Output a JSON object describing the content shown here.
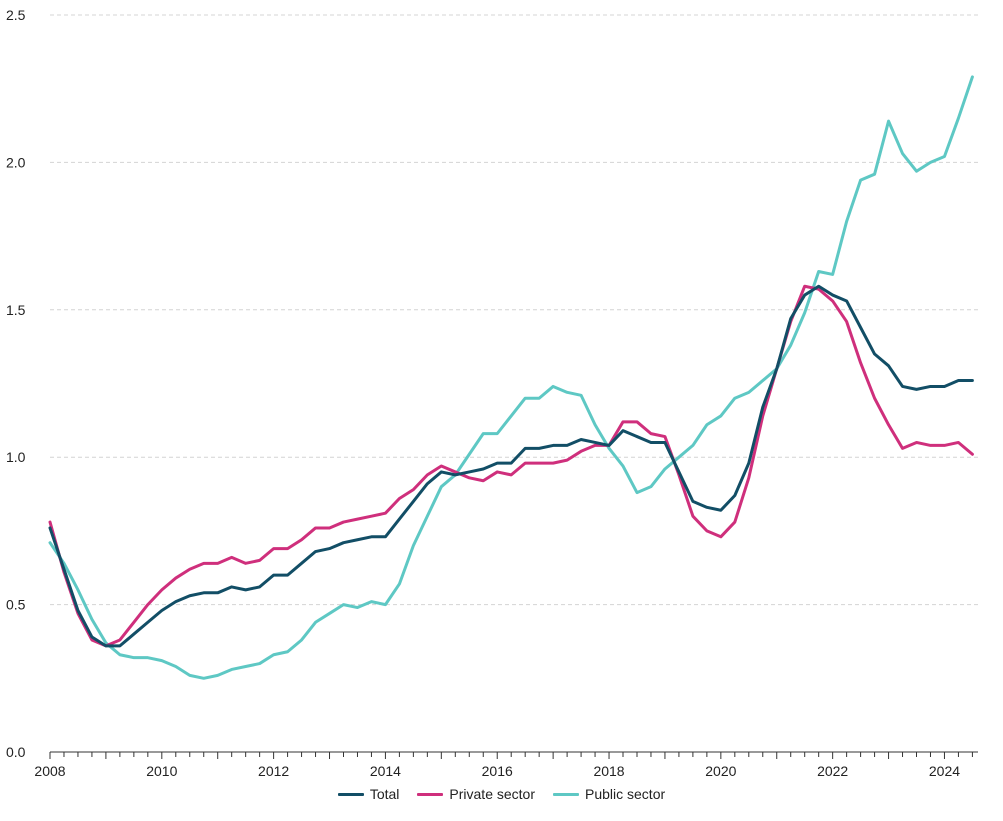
{
  "chart_data": {
    "type": "line",
    "title": "",
    "xlabel": "",
    "ylabel": "",
    "xlim": [
      2008.0,
      2024.6
    ],
    "ylim": [
      0,
      2.5
    ],
    "grid": true,
    "legend_position": "bottom-center",
    "x_ticks": [
      "2008",
      "2010",
      "2012",
      "2014",
      "2016",
      "2018",
      "2020",
      "2022",
      "2024"
    ],
    "y_ticks": [
      "0.0",
      "0.5",
      "1.0",
      "1.5",
      "2.0",
      "2.5"
    ],
    "x": [
      2008.0,
      2008.25,
      2008.5,
      2008.75,
      2009.0,
      2009.25,
      2009.5,
      2009.75,
      2010.0,
      2010.25,
      2010.5,
      2010.75,
      2011.0,
      2011.25,
      2011.5,
      2011.75,
      2012.0,
      2012.25,
      2012.5,
      2012.75,
      2013.0,
      2013.25,
      2013.5,
      2013.75,
      2014.0,
      2014.25,
      2014.5,
      2014.75,
      2015.0,
      2015.25,
      2015.5,
      2015.75,
      2016.0,
      2016.25,
      2016.5,
      2016.75,
      2017.0,
      2017.25,
      2017.5,
      2017.75,
      2018.0,
      2018.25,
      2018.5,
      2018.75,
      2019.0,
      2019.25,
      2019.5,
      2019.75,
      2020.0,
      2020.25,
      2020.5,
      2020.75,
      2021.0,
      2021.25,
      2021.5,
      2021.75,
      2022.0,
      2022.25,
      2022.5,
      2022.75,
      2023.0,
      2023.25,
      2023.5,
      2023.75,
      2024.0,
      2024.25,
      2024.5
    ],
    "series": [
      {
        "name": "Total",
        "color": "#124e66",
        "values": [
          0.76,
          0.62,
          0.48,
          0.39,
          0.36,
          0.36,
          0.4,
          0.44,
          0.48,
          0.51,
          0.53,
          0.54,
          0.54,
          0.56,
          0.55,
          0.56,
          0.6,
          0.6,
          0.64,
          0.68,
          0.69,
          0.71,
          0.72,
          0.73,
          0.73,
          0.79,
          0.85,
          0.91,
          0.95,
          0.94,
          0.95,
          0.96,
          0.98,
          0.98,
          1.03,
          1.03,
          1.04,
          1.04,
          1.06,
          1.05,
          1.04,
          1.09,
          1.07,
          1.05,
          1.05,
          0.95,
          0.85,
          0.83,
          0.82,
          0.87,
          0.98,
          1.17,
          1.3,
          1.47,
          1.55,
          1.58,
          1.55,
          1.53,
          1.44,
          1.35,
          1.31,
          1.24,
          1.23,
          1.24,
          1.24,
          1.26,
          1.26
        ]
      },
      {
        "name": "Private sector",
        "color": "#cf2f7c",
        "values": [
          0.78,
          0.61,
          0.47,
          0.38,
          0.36,
          0.38,
          0.44,
          0.5,
          0.55,
          0.59,
          0.62,
          0.64,
          0.64,
          0.66,
          0.64,
          0.65,
          0.69,
          0.69,
          0.72,
          0.76,
          0.76,
          0.78,
          0.79,
          0.8,
          0.81,
          0.86,
          0.89,
          0.94,
          0.97,
          0.95,
          0.93,
          0.92,
          0.95,
          0.94,
          0.98,
          0.98,
          0.98,
          0.99,
          1.02,
          1.04,
          1.04,
          1.12,
          1.12,
          1.08,
          1.07,
          0.94,
          0.8,
          0.75,
          0.73,
          0.78,
          0.93,
          1.14,
          1.3,
          1.46,
          1.58,
          1.57,
          1.53,
          1.46,
          1.32,
          1.2,
          1.11,
          1.03,
          1.05,
          1.04,
          1.04,
          1.05,
          1.01
        ]
      },
      {
        "name": "Public sector",
        "color": "#5ec8c4",
        "values": [
          0.71,
          0.64,
          0.55,
          0.45,
          0.37,
          0.33,
          0.32,
          0.32,
          0.31,
          0.29,
          0.26,
          0.25,
          0.26,
          0.28,
          0.29,
          0.3,
          0.33,
          0.34,
          0.38,
          0.44,
          0.47,
          0.5,
          0.49,
          0.51,
          0.5,
          0.57,
          0.7,
          0.8,
          0.9,
          0.94,
          1.01,
          1.08,
          1.08,
          1.14,
          1.2,
          1.2,
          1.24,
          1.22,
          1.21,
          1.11,
          1.03,
          0.97,
          0.88,
          0.9,
          0.96,
          1.0,
          1.04,
          1.11,
          1.14,
          1.2,
          1.22,
          1.26,
          1.3,
          1.38,
          1.49,
          1.63,
          1.62,
          1.8,
          1.94,
          1.96,
          2.14,
          2.03,
          1.97,
          2.0,
          2.02,
          2.15,
          2.29
        ]
      }
    ]
  }
}
